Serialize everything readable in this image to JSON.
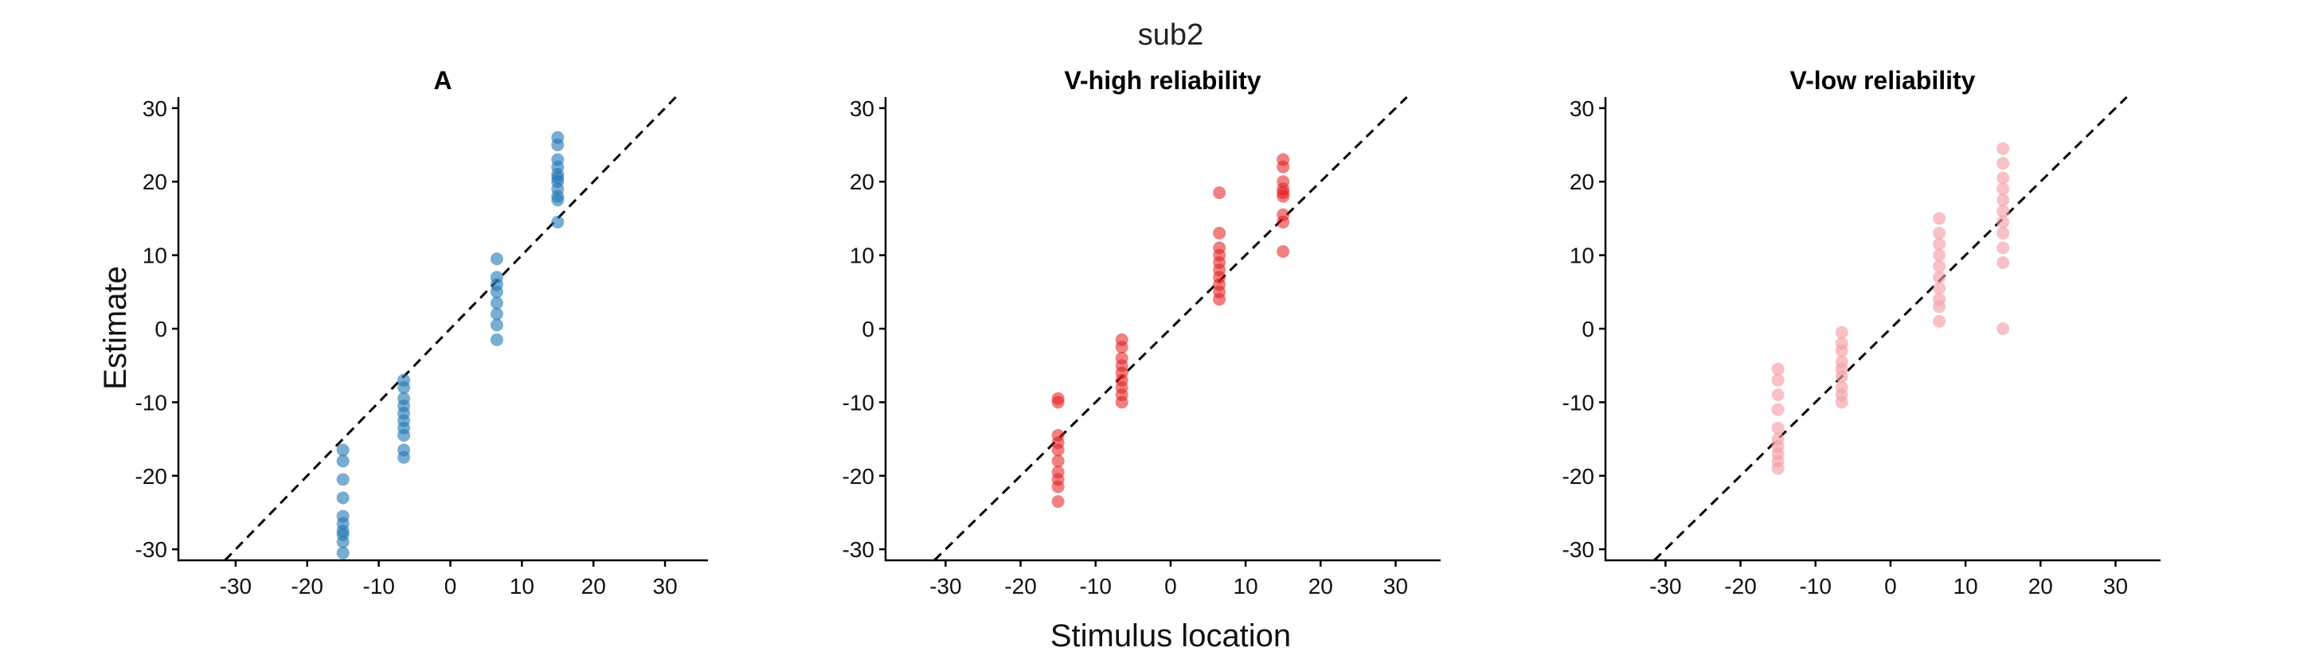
{
  "chart_data": {
    "type": "scatter",
    "suptitle": "sub2",
    "xlabel": "Stimulus location",
    "ylabel": "Estimate",
    "xlim": [
      -38,
      36
    ],
    "ylim": [
      -31.5,
      31.5
    ],
    "xticks": [
      -30,
      -20,
      -10,
      0,
      10,
      20,
      30
    ],
    "yticks": [
      -30,
      -20,
      -10,
      0,
      10,
      20,
      30
    ],
    "reference_line": "identity (y = x), dashed black",
    "grid": false,
    "panels": [
      {
        "title": "A",
        "color": "#1f77b4",
        "alpha": 0.6,
        "points": [
          {
            "x": -15,
            "y": [
              -16.5,
              -18,
              -20.5,
              -23,
              -25.5,
              -26.5,
              -27.5,
              -28,
              -29,
              -30.5
            ]
          },
          {
            "x": -6.5,
            "y": [
              -7,
              -8,
              -9.5,
              -10.5,
              -11.5,
              -12.5,
              -13.5,
              -14.5,
              -16.5,
              -17.5
            ]
          },
          {
            "x": 6.5,
            "y": [
              9.5,
              7,
              6,
              5,
              3.5,
              2,
              0.5,
              -1.5
            ]
          },
          {
            "x": 15,
            "y": [
              26,
              25,
              23,
              22,
              21,
              20.5,
              20,
              19,
              18,
              17.5,
              14.5
            ]
          }
        ]
      },
      {
        "title": "V-high reliability",
        "color": "#e31a1c",
        "alpha": 0.55,
        "points": [
          {
            "x": -15,
            "y": [
              -9.5,
              -10,
              -14.5,
              -15.5,
              -16.5,
              -18,
              -19.5,
              -20.5,
              -21.5,
              -23.5
            ]
          },
          {
            "x": -6.5,
            "y": [
              -1.5,
              -2.5,
              -4,
              -5,
              -6,
              -7,
              -8,
              -9,
              -10
            ]
          },
          {
            "x": 6.5,
            "y": [
              18.5,
              13,
              11,
              10,
              9,
              8,
              7,
              6,
              5,
              4
            ]
          },
          {
            "x": 15,
            "y": [
              23,
              22,
              20,
              19,
              18.5,
              18,
              15.5,
              14.5,
              10.5
            ]
          }
        ]
      },
      {
        "title": "V-low reliability",
        "color": "#f4a0a6",
        "alpha": 0.65,
        "points": [
          {
            "x": -15,
            "y": [
              -5.5,
              -7,
              -9,
              -11,
              -13.5,
              -15,
              -16,
              -17,
              -18,
              -19
            ]
          },
          {
            "x": -6.5,
            "y": [
              -0.5,
              -2,
              -3,
              -4.5,
              -5.5,
              -6.5,
              -8,
              -9,
              -10
            ]
          },
          {
            "x": 6.5,
            "y": [
              15,
              13,
              11.5,
              10,
              8.5,
              7,
              5.5,
              4,
              3,
              1
            ]
          },
          {
            "x": 15,
            "y": [
              24.5,
              22.5,
              20.5,
              19,
              17.5,
              16,
              14.5,
              13,
              11,
              9,
              0
            ]
          }
        ]
      }
    ]
  }
}
